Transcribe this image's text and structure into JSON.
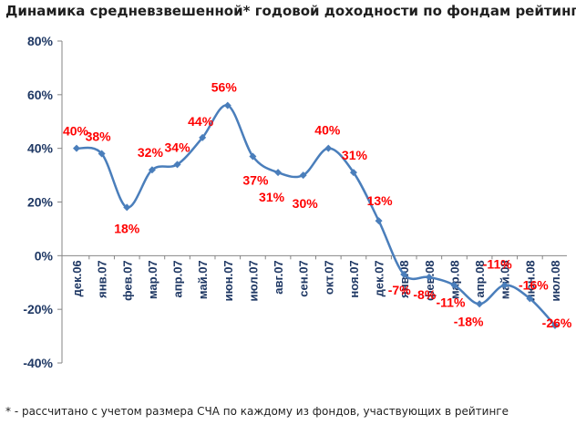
{
  "chart_data": {
    "type": "line",
    "title": "Динамика средневзвешенной* годовой доходности по фондам рейтинге",
    "footnote": "* - рассчитано с учетом размера СЧА по каждому из фондов, участвующих в рейтинге",
    "categories": [
      "дек.06",
      "янв.07",
      "фев.07",
      "мар.07",
      "апр.07",
      "май.07",
      "июн.07",
      "июл.07",
      "авг.07",
      "сен.07",
      "окт.07",
      "ноя.07",
      "дек.07",
      "янв.08",
      "фев.08",
      "мар.08",
      "апр.08",
      "май.08",
      "июн.08",
      "июл.08"
    ],
    "series": [
      {
        "values": [
          40,
          38,
          18,
          32,
          34,
          44,
          56,
          37,
          31,
          30,
          40,
          31,
          13,
          -7,
          -8,
          -11,
          -18,
          -11,
          -16,
          -26
        ],
        "labels": [
          "40%",
          "38%",
          "18%",
          "32%",
          "34%",
          "44%",
          "56%",
          "37%",
          "31%",
          "30%",
          "40%",
          "31%",
          "13%",
          "-7%",
          "-8%",
          "-11%",
          "-18%",
          "-11%",
          "-16%",
          "-26%"
        ]
      }
    ],
    "yticks": [
      "80%",
      "60%",
      "40%",
      "20%",
      "0%",
      "-20%",
      "-40%"
    ],
    "ylim": [
      -40,
      80
    ],
    "grid": false,
    "colors": {
      "line": "#4a7ebb",
      "marker": "#4a7ebb",
      "label": "#ff0000",
      "axis_text": "#1f3864"
    }
  }
}
